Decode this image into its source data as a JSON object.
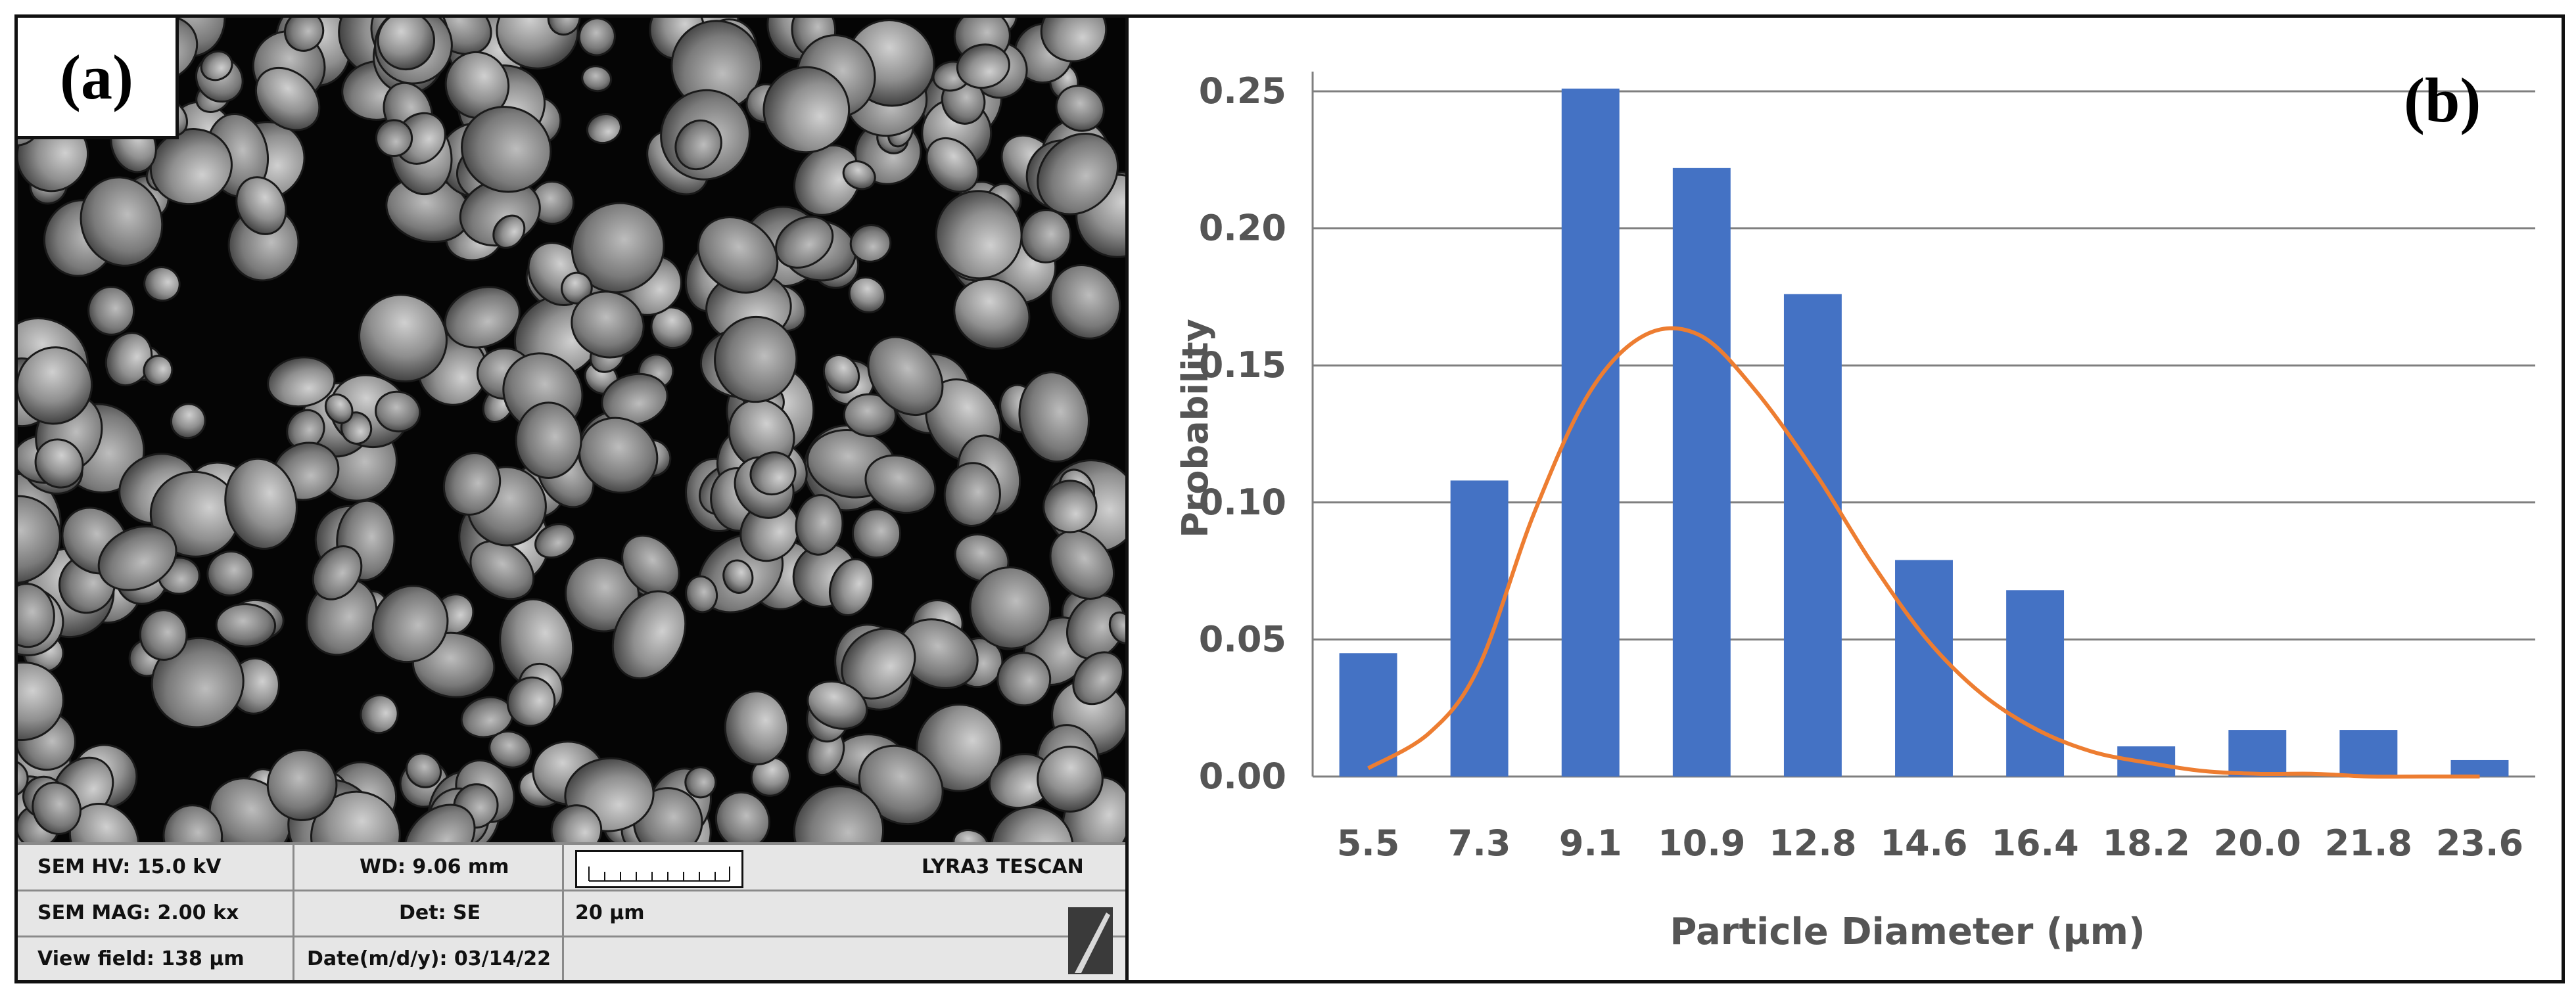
{
  "panel_a": {
    "label": "(a)",
    "info": {
      "hv": "SEM HV: 15.0 kV",
      "wd": "WD: 9.06 mm",
      "brand": "LYRA3 TESCAN",
      "mag": "SEM MAG: 2.00 kx",
      "det": "Det: SE",
      "scale": "20 µm",
      "view_field": "View field: 138 µm",
      "date": "Date(m/d/y): 03/14/22"
    }
  },
  "panel_b": {
    "label": "(b)"
  },
  "chart_data": {
    "type": "bar",
    "title": "",
    "xlabel": "Particle Diameter (µm)",
    "ylabel": "Probability",
    "categories": [
      "5.5",
      "7.3",
      "9.1",
      "10.9",
      "12.8",
      "14.6",
      "16.4",
      "18.2",
      "20.0",
      "21.8",
      "23.6"
    ],
    "values": [
      0.045,
      0.108,
      0.251,
      0.222,
      0.176,
      0.079,
      0.068,
      0.011,
      0.017,
      0.017,
      0.006
    ],
    "ylim": [
      0,
      0.25
    ],
    "yticks": [
      "0.00",
      "0.05",
      "0.10",
      "0.15",
      "0.20",
      "0.25"
    ],
    "grid": true,
    "bar_color": "#4472C4",
    "fit_curve": {
      "color": "#ED7D31",
      "x": [
        5.5,
        6.5,
        7.3,
        8.2,
        9.1,
        10.0,
        10.9,
        11.8,
        12.8,
        13.7,
        14.6,
        15.5,
        16.4,
        17.3,
        18.2,
        19.1,
        20.0,
        20.9,
        21.8,
        22.7,
        23.6
      ],
      "y": [
        0.003,
        0.016,
        0.04,
        0.096,
        0.14,
        0.161,
        0.161,
        0.141,
        0.11,
        0.078,
        0.05,
        0.03,
        0.017,
        0.009,
        0.005,
        0.002,
        0.001,
        0.001,
        0.0,
        0.0,
        0.0
      ]
    }
  }
}
